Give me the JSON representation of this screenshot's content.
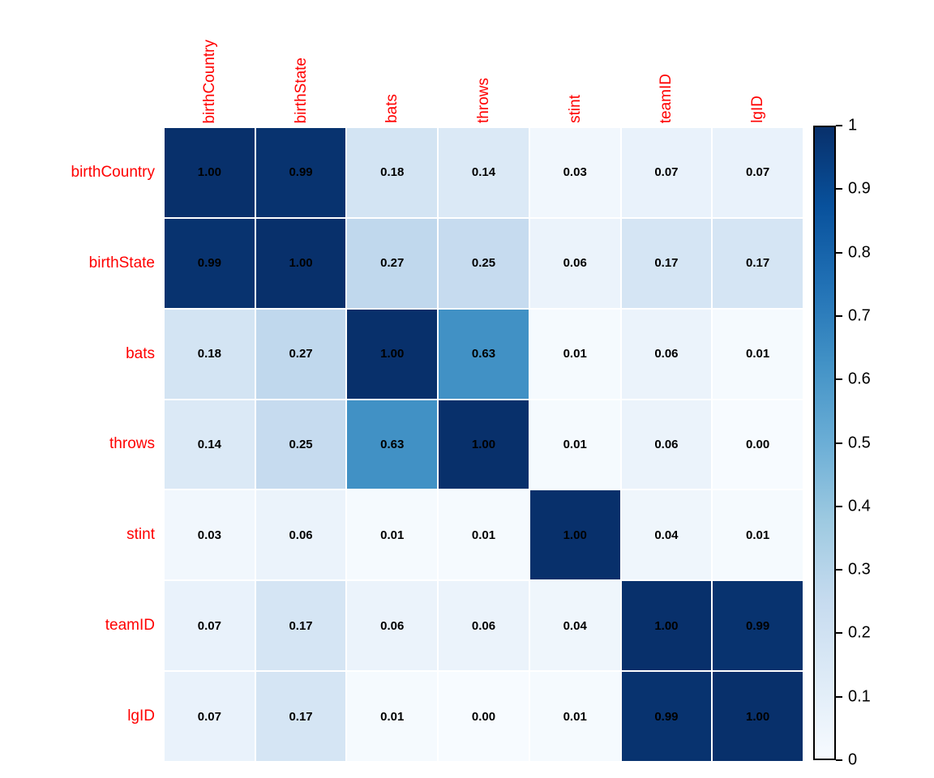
{
  "chart_data": {
    "type": "heatmap",
    "title": "",
    "variables": [
      "birthCountry",
      "birthState",
      "bats",
      "throws",
      "stint",
      "teamID",
      "lgID"
    ],
    "matrix": [
      [
        1.0,
        0.99,
        0.18,
        0.14,
        0.03,
        0.07,
        0.07
      ],
      [
        0.99,
        1.0,
        0.27,
        0.25,
        0.06,
        0.17,
        0.17
      ],
      [
        0.18,
        0.27,
        1.0,
        0.63,
        0.01,
        0.06,
        0.01
      ],
      [
        0.14,
        0.25,
        0.63,
        1.0,
        0.01,
        0.06,
        0.0
      ],
      [
        0.03,
        0.06,
        0.01,
        0.01,
        1.0,
        0.04,
        0.01
      ],
      [
        0.07,
        0.17,
        0.06,
        0.06,
        0.04,
        1.0,
        0.99
      ],
      [
        0.07,
        0.17,
        0.01,
        0.0,
        0.01,
        0.99,
        1.0
      ]
    ],
    "value_decimals": 2,
    "colorbar": {
      "min": 0,
      "max": 1,
      "tick_values": [
        1,
        0.9,
        0.8,
        0.7,
        0.6,
        0.5,
        0.4,
        0.3,
        0.2,
        0.1,
        0
      ],
      "tick_labels": [
        "1",
        "0.9",
        "0.8",
        "0.7",
        "0.6",
        "0.5",
        "0.4",
        "0.3",
        "0.2",
        "0.1",
        "0"
      ],
      "position": "right"
    },
    "colors": {
      "label_color": "#ff0000",
      "value_color": "#000000",
      "background": "#ffffff",
      "colormap_name": "Blues",
      "colormap_stops": [
        "#F7FBFF",
        "#DEEBF7",
        "#C6DBEF",
        "#9ECAE1",
        "#6BAED6",
        "#4292C6",
        "#2171B5",
        "#08519C",
        "#08306B"
      ]
    },
    "grid": "white-gaps",
    "legend_position": "right"
  }
}
